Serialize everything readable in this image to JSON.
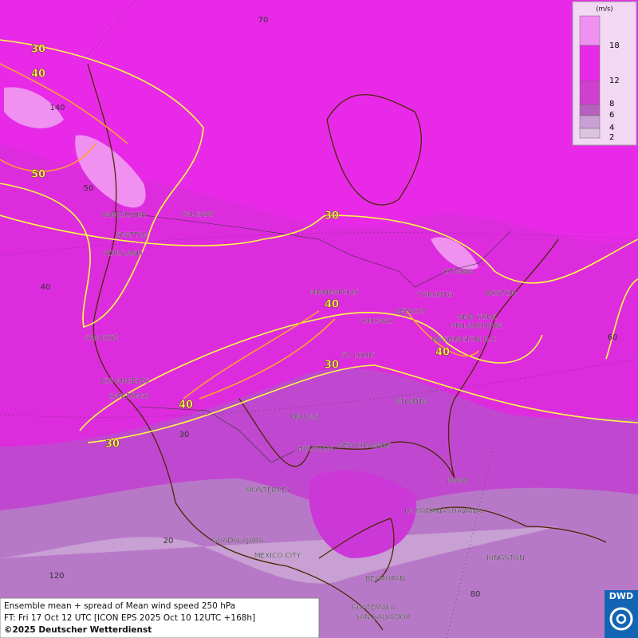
{
  "legend": {
    "unit": "(m/s)",
    "levels": [
      18,
      12,
      8,
      6,
      4,
      2
    ]
  },
  "cities": [
    "VANCOUVER",
    "CALGARY",
    "SEATTLE",
    "PORTLAND",
    "SAN JOSE",
    "LOS ANGELES",
    "SAN DIEGO",
    "MINNEAPOLIS",
    "TORONTO",
    "OTTAWA",
    "BOSTON",
    "DETROIT",
    "CHICAGO",
    "NEW YORK",
    "PHILADELPHIA",
    "WASHINGTON D.C.",
    "ST. LOUIS",
    "ATLANTA",
    "DALLAS",
    "HOUSTON",
    "NEW ORLEANS",
    "MIAMI",
    "MONTERREY",
    "LA HABANA (HAVANA)",
    "GUADALAJARA",
    "MEXICO CITY",
    "KINGSTON",
    "BELMOPAN",
    "GUATEMALA",
    "SAN SALVADOR"
  ],
  "contour_labels": [
    30,
    40,
    50,
    30,
    40,
    40,
    30,
    40,
    30
  ],
  "grid_labels": [
    70,
    140,
    50,
    40,
    60,
    30,
    20,
    120,
    80
  ],
  "footer": {
    "line1": "Ensemble mean + spread of Mean wind speed 250 hPa",
    "line2": "FT: Fri 17 Oct 12 UTC [ICON EPS 2025 Oct 10 12UTC +168h]",
    "copyright": "©2025 Deutscher Wetterdienst"
  },
  "logo": "DWD"
}
